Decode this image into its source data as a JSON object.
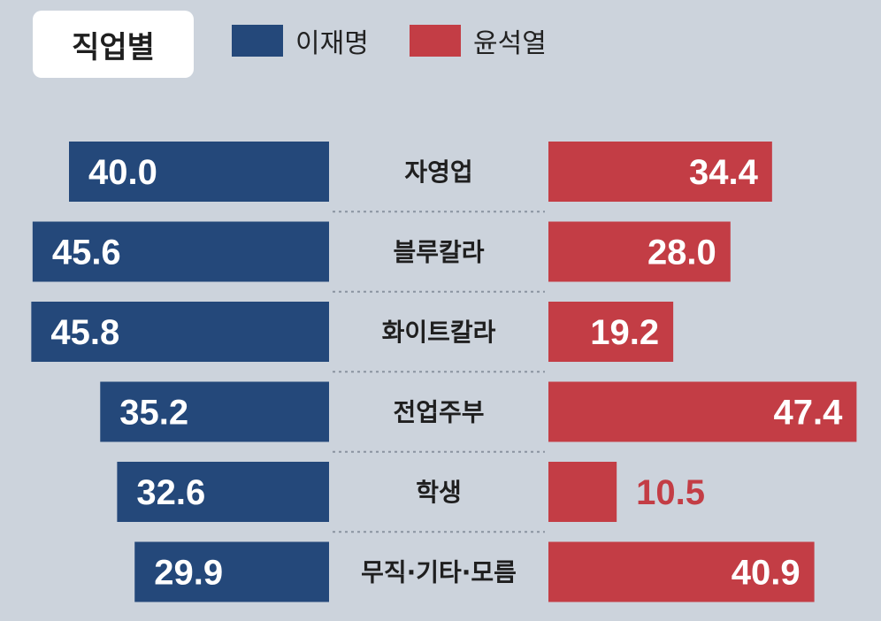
{
  "header": {
    "title": "직업별"
  },
  "legend": [
    {
      "label": "이재명",
      "color": "#24487a"
    },
    {
      "label": "윤석열",
      "color": "#c33d45"
    }
  ],
  "chart_data": {
    "type": "bar",
    "orientation": "diverging-horizontal",
    "title": "직업별",
    "categories": [
      "자영업",
      "블루칼라",
      "화이트칼라",
      "전업주부",
      "학생",
      "무직·기타·모름"
    ],
    "series": [
      {
        "name": "이재명",
        "color": "#24487a",
        "values": [
          40.0,
          45.6,
          45.8,
          35.2,
          32.6,
          29.9
        ]
      },
      {
        "name": "윤석열",
        "color": "#c33d45",
        "values": [
          34.4,
          28.0,
          19.2,
          47.4,
          10.5,
          40.9
        ]
      }
    ],
    "value_labels": {
      "이재명": [
        "40.0",
        "45.6",
        "45.8",
        "35.2",
        "32.6",
        "29.9"
      ],
      "윤석열": [
        "34.4",
        "28.0",
        "19.2",
        "47.4",
        "10.5",
        "40.9"
      ]
    },
    "xlabel": "",
    "ylabel": ""
  }
}
